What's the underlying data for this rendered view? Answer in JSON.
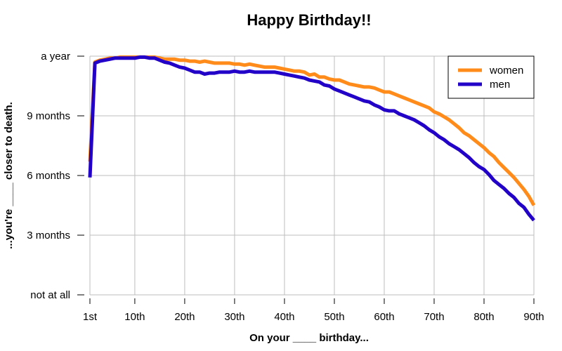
{
  "chart_data": {
    "type": "line",
    "title": "Happy Birthday!!",
    "xlabel": "On your ____ birthday...",
    "ylabel": "...you're ____ closer to death.",
    "xlim": [
      1,
      90
    ],
    "ylim": [
      0,
      12
    ],
    "x_ticks": [
      {
        "value": 1,
        "label": "1st"
      },
      {
        "value": 10,
        "label": "10th"
      },
      {
        "value": 20,
        "label": "20th"
      },
      {
        "value": 30,
        "label": "30th"
      },
      {
        "value": 40,
        "label": "40th"
      },
      {
        "value": 50,
        "label": "50th"
      },
      {
        "value": 60,
        "label": "60th"
      },
      {
        "value": 70,
        "label": "70th"
      },
      {
        "value": 80,
        "label": "80th"
      },
      {
        "value": 90,
        "label": "90th"
      }
    ],
    "y_ticks": [
      {
        "value": 0,
        "label": "not at all"
      },
      {
        "value": 3,
        "label": "3 months"
      },
      {
        "value": 6,
        "label": "6 months"
      },
      {
        "value": 9,
        "label": "9 months"
      },
      {
        "value": 12,
        "label": "a year"
      }
    ],
    "grid": true,
    "legend_position": "top-right",
    "series": [
      {
        "name": "women",
        "color": "#ff8c1a",
        "points": [
          [
            1,
            6.7
          ],
          [
            2,
            11.7
          ],
          [
            3,
            11.8
          ],
          [
            4,
            11.85
          ],
          [
            5,
            11.9
          ],
          [
            6,
            11.9
          ],
          [
            7,
            11.95
          ],
          [
            8,
            11.95
          ],
          [
            9,
            11.95
          ],
          [
            10,
            11.95
          ],
          [
            11,
            11.95
          ],
          [
            12,
            11.95
          ],
          [
            13,
            11.95
          ],
          [
            14,
            11.95
          ],
          [
            15,
            11.9
          ],
          [
            16,
            11.85
          ],
          [
            17,
            11.85
          ],
          [
            18,
            11.85
          ],
          [
            19,
            11.8
          ],
          [
            20,
            11.8
          ],
          [
            21,
            11.75
          ],
          [
            22,
            11.75
          ],
          [
            23,
            11.7
          ],
          [
            24,
            11.75
          ],
          [
            25,
            11.7
          ],
          [
            26,
            11.65
          ],
          [
            27,
            11.65
          ],
          [
            28,
            11.65
          ],
          [
            29,
            11.65
          ],
          [
            30,
            11.6
          ],
          [
            31,
            11.6
          ],
          [
            32,
            11.55
          ],
          [
            33,
            11.6
          ],
          [
            34,
            11.55
          ],
          [
            35,
            11.5
          ],
          [
            36,
            11.45
          ],
          [
            37,
            11.45
          ],
          [
            38,
            11.45
          ],
          [
            39,
            11.4
          ],
          [
            40,
            11.35
          ],
          [
            41,
            11.3
          ],
          [
            42,
            11.25
          ],
          [
            43,
            11.25
          ],
          [
            44,
            11.2
          ],
          [
            45,
            11.05
          ],
          [
            46,
            11.1
          ],
          [
            47,
            10.95
          ],
          [
            48,
            10.95
          ],
          [
            49,
            10.85
          ],
          [
            50,
            10.8
          ],
          [
            51,
            10.8
          ],
          [
            52,
            10.7
          ],
          [
            53,
            10.6
          ],
          [
            54,
            10.55
          ],
          [
            55,
            10.5
          ],
          [
            56,
            10.45
          ],
          [
            57,
            10.45
          ],
          [
            58,
            10.4
          ],
          [
            59,
            10.3
          ],
          [
            60,
            10.2
          ],
          [
            61,
            10.2
          ],
          [
            62,
            10.1
          ],
          [
            63,
            10.0
          ],
          [
            64,
            9.9
          ],
          [
            65,
            9.8
          ],
          [
            66,
            9.7
          ],
          [
            67,
            9.6
          ],
          [
            68,
            9.5
          ],
          [
            69,
            9.4
          ],
          [
            70,
            9.2
          ],
          [
            71,
            9.1
          ],
          [
            72,
            8.95
          ],
          [
            73,
            8.8
          ],
          [
            74,
            8.6
          ],
          [
            75,
            8.4
          ],
          [
            76,
            8.15
          ],
          [
            77,
            8.0
          ],
          [
            78,
            7.8
          ],
          [
            79,
            7.6
          ],
          [
            80,
            7.4
          ],
          [
            81,
            7.15
          ],
          [
            82,
            6.95
          ],
          [
            83,
            6.65
          ],
          [
            84,
            6.4
          ],
          [
            85,
            6.15
          ],
          [
            86,
            5.9
          ],
          [
            87,
            5.6
          ],
          [
            88,
            5.3
          ],
          [
            89,
            4.95
          ],
          [
            90,
            4.5
          ]
        ]
      },
      {
        "name": "men",
        "color": "#2200c8",
        "points": [
          [
            1,
            5.9
          ],
          [
            2,
            11.65
          ],
          [
            3,
            11.75
          ],
          [
            4,
            11.8
          ],
          [
            5,
            11.85
          ],
          [
            6,
            11.9
          ],
          [
            7,
            11.9
          ],
          [
            8,
            11.9
          ],
          [
            9,
            11.9
          ],
          [
            10,
            11.9
          ],
          [
            11,
            11.95
          ],
          [
            12,
            11.95
          ],
          [
            13,
            11.9
          ],
          [
            14,
            11.9
          ],
          [
            15,
            11.8
          ],
          [
            16,
            11.7
          ],
          [
            17,
            11.65
          ],
          [
            18,
            11.55
          ],
          [
            19,
            11.45
          ],
          [
            20,
            11.4
          ],
          [
            21,
            11.3
          ],
          [
            22,
            11.2
          ],
          [
            23,
            11.2
          ],
          [
            24,
            11.1
          ],
          [
            25,
            11.15
          ],
          [
            26,
            11.15
          ],
          [
            27,
            11.2
          ],
          [
            28,
            11.2
          ],
          [
            29,
            11.2
          ],
          [
            30,
            11.25
          ],
          [
            31,
            11.2
          ],
          [
            32,
            11.2
          ],
          [
            33,
            11.25
          ],
          [
            34,
            11.2
          ],
          [
            35,
            11.2
          ],
          [
            36,
            11.2
          ],
          [
            37,
            11.2
          ],
          [
            38,
            11.2
          ],
          [
            39,
            11.15
          ],
          [
            40,
            11.1
          ],
          [
            41,
            11.05
          ],
          [
            42,
            11.0
          ],
          [
            43,
            10.95
          ],
          [
            44,
            10.9
          ],
          [
            45,
            10.8
          ],
          [
            46,
            10.75
          ],
          [
            47,
            10.7
          ],
          [
            48,
            10.55
          ],
          [
            49,
            10.5
          ],
          [
            50,
            10.35
          ],
          [
            51,
            10.25
          ],
          [
            52,
            10.15
          ],
          [
            53,
            10.05
          ],
          [
            54,
            9.95
          ],
          [
            55,
            9.85
          ],
          [
            56,
            9.75
          ],
          [
            57,
            9.7
          ],
          [
            58,
            9.55
          ],
          [
            59,
            9.45
          ],
          [
            60,
            9.3
          ],
          [
            61,
            9.25
          ],
          [
            62,
            9.25
          ],
          [
            63,
            9.1
          ],
          [
            64,
            9.0
          ],
          [
            65,
            8.9
          ],
          [
            66,
            8.8
          ],
          [
            67,
            8.65
          ],
          [
            68,
            8.5
          ],
          [
            69,
            8.3
          ],
          [
            70,
            8.15
          ],
          [
            71,
            7.95
          ],
          [
            72,
            7.8
          ],
          [
            73,
            7.6
          ],
          [
            74,
            7.45
          ],
          [
            75,
            7.3
          ],
          [
            76,
            7.1
          ],
          [
            77,
            6.9
          ],
          [
            78,
            6.65
          ],
          [
            79,
            6.45
          ],
          [
            80,
            6.3
          ],
          [
            81,
            6.05
          ],
          [
            82,
            5.75
          ],
          [
            83,
            5.55
          ],
          [
            84,
            5.35
          ],
          [
            85,
            5.1
          ],
          [
            86,
            4.9
          ],
          [
            87,
            4.6
          ],
          [
            88,
            4.4
          ],
          [
            89,
            4.05
          ],
          [
            90,
            3.75
          ]
        ]
      }
    ]
  }
}
